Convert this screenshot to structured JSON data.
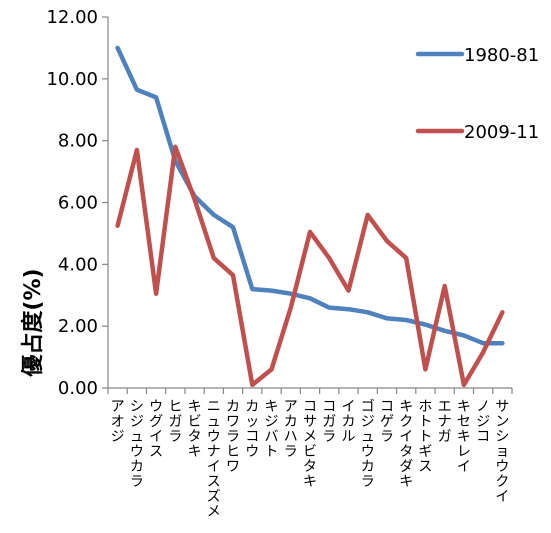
{
  "chart_data": {
    "type": "line",
    "ylabel": "優占度(%)",
    "ylim": [
      0,
      12
    ],
    "yticks": [
      "0.00",
      "2.00",
      "4.00",
      "6.00",
      "8.00",
      "10.00",
      "12.00"
    ],
    "grid": false,
    "legend_position": "right",
    "categories": [
      "アオジ",
      "シジュウカラ",
      "ウグイス",
      "ヒガラ",
      "キビタキ",
      "ニュウナイスズメ",
      "カワラヒワ",
      "カッコウ",
      "キジバト",
      "アカハラ",
      "コサメビタキ",
      "コガラ",
      "イカル",
      "ゴジュウカラ",
      "コゲラ",
      "キクイタダキ",
      "ホトトギス",
      "エナガ",
      "キセキレイ",
      "ノジコ",
      "サンショウクイ"
    ],
    "series": [
      {
        "name": "1980-81",
        "color": "#4f81bd",
        "values": [
          11.0,
          9.65,
          9.4,
          7.35,
          6.2,
          5.6,
          5.2,
          3.2,
          3.15,
          3.05,
          2.9,
          2.6,
          2.55,
          2.45,
          2.25,
          2.2,
          2.05,
          1.85,
          1.7,
          1.45,
          1.45
        ]
      },
      {
        "name": "2009-11",
        "color": "#c0504d",
        "values": [
          5.25,
          7.7,
          3.05,
          7.8,
          6.1,
          4.2,
          3.65,
          0.1,
          0.6,
          2.6,
          5.05,
          4.2,
          3.15,
          5.6,
          4.75,
          4.2,
          0.6,
          3.3,
          0.1,
          1.15,
          2.45
        ]
      }
    ]
  }
}
